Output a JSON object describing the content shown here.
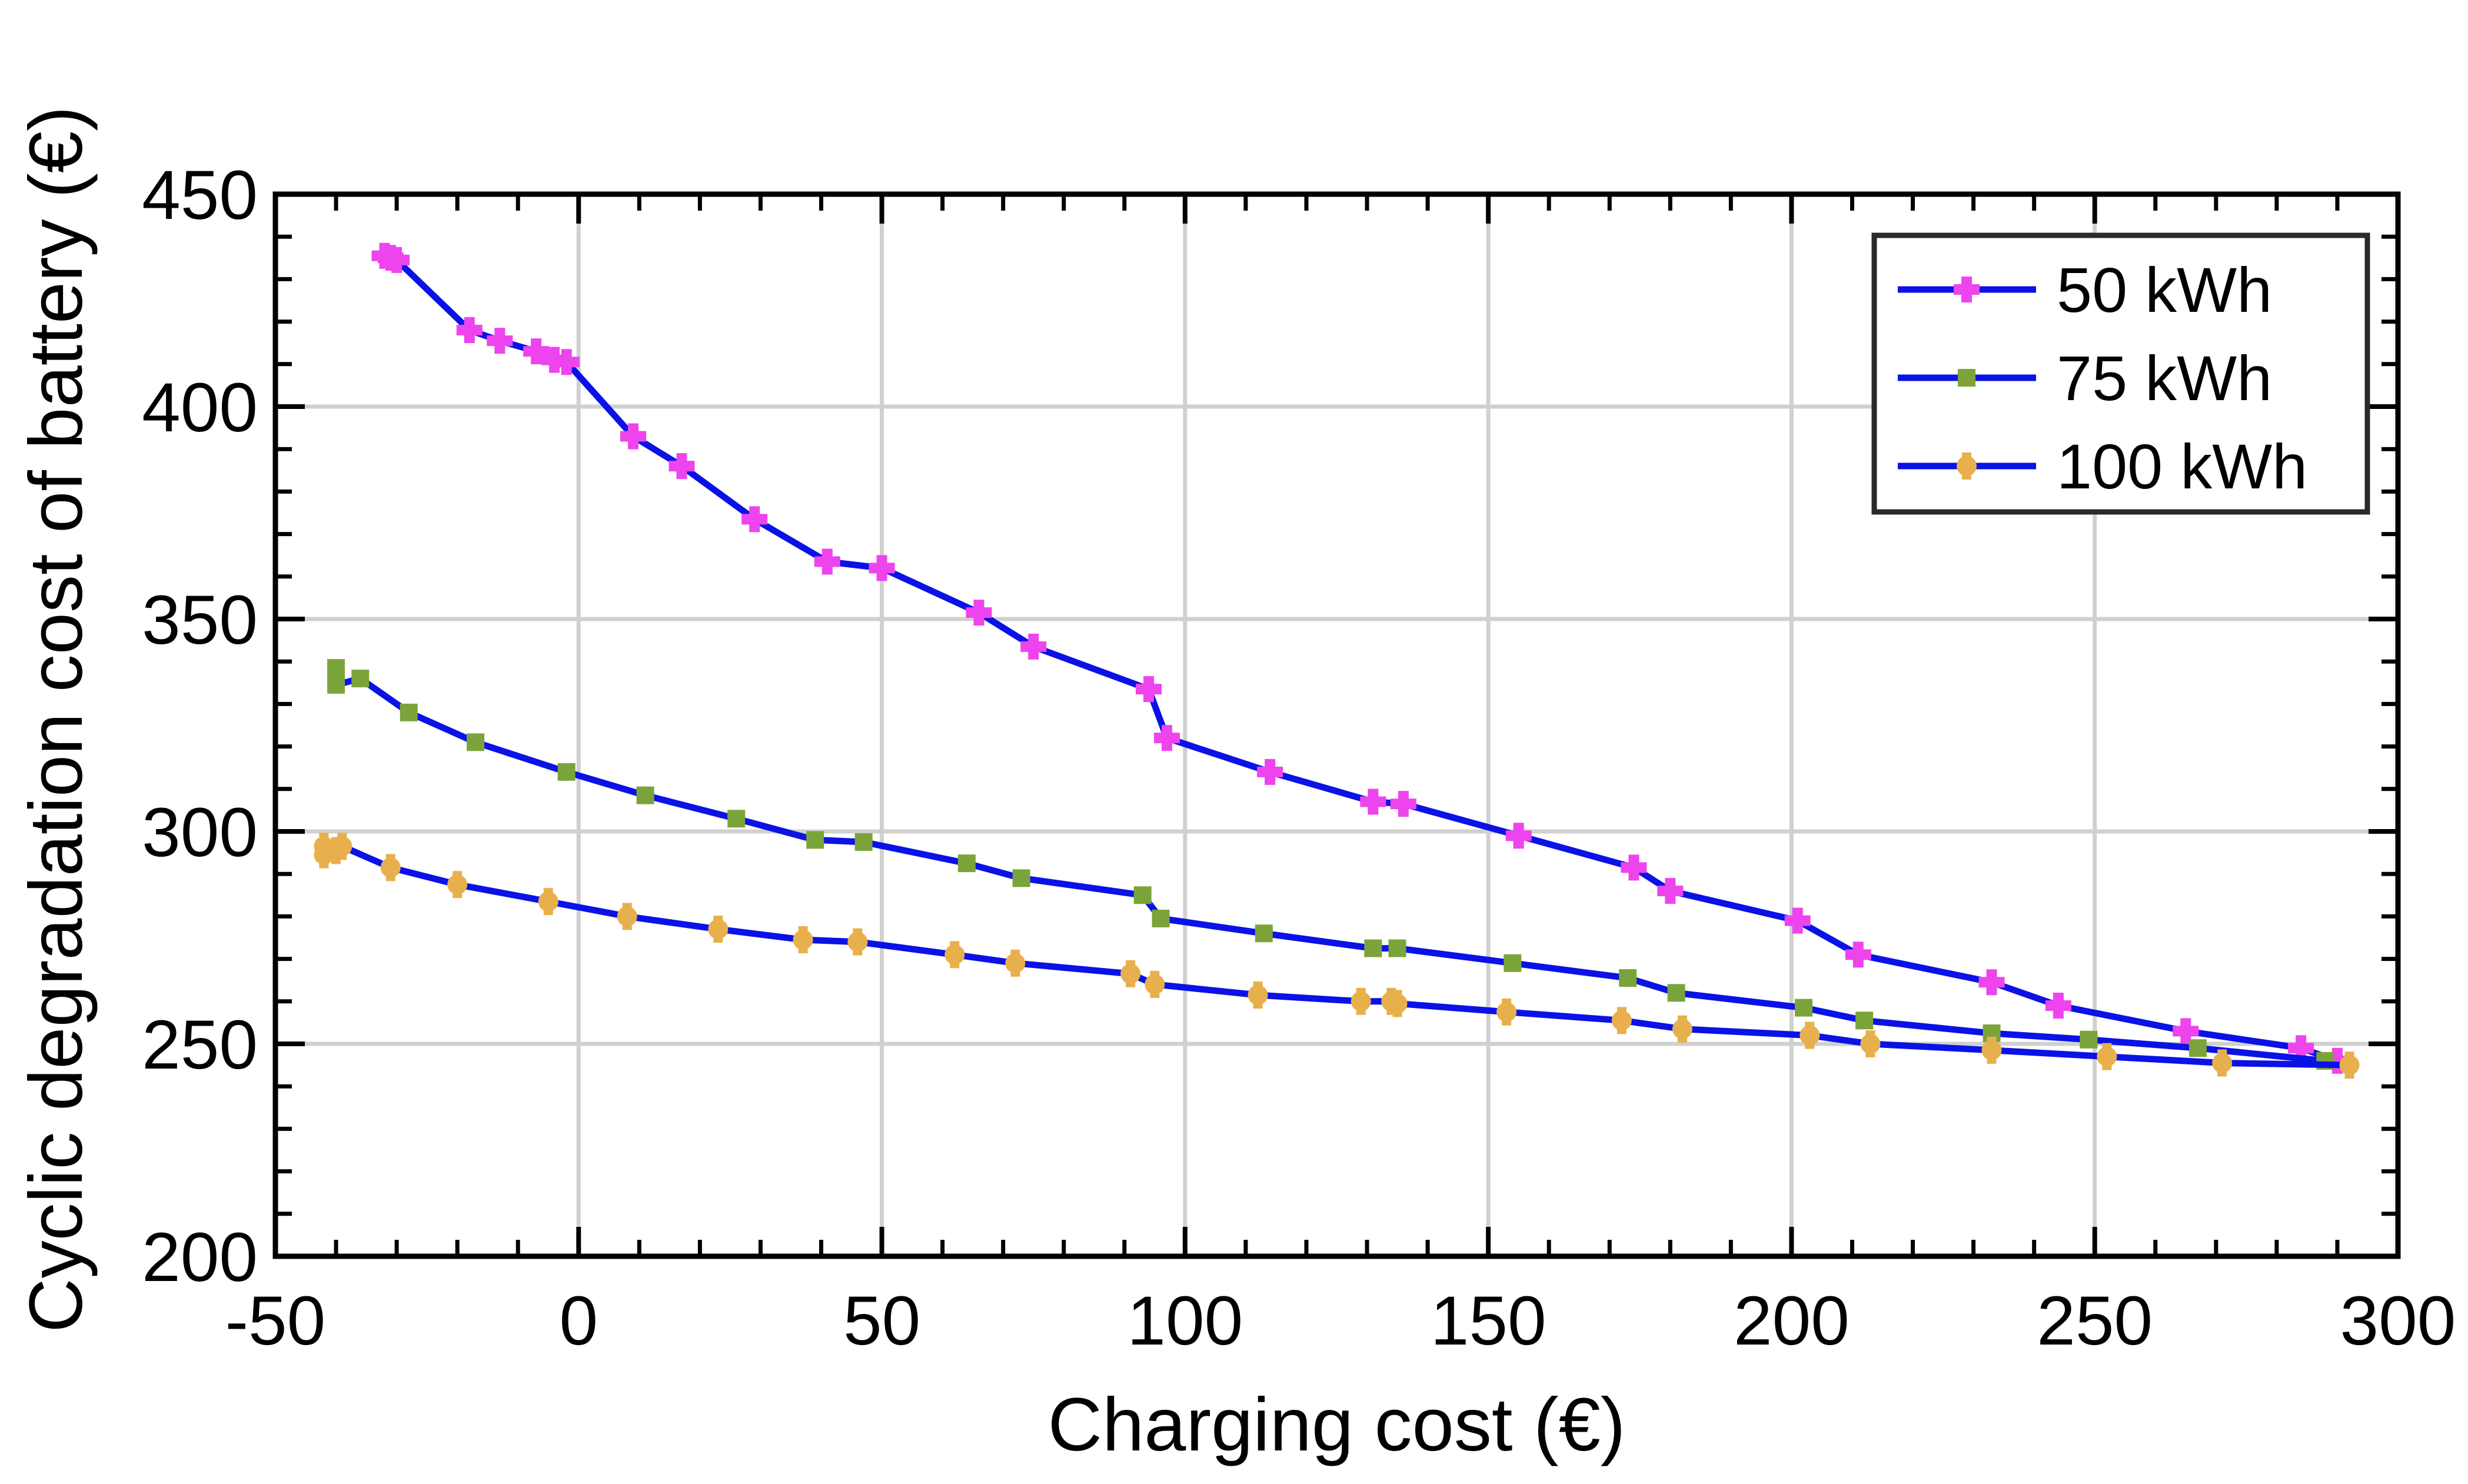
{
  "chart_data": {
    "type": "line",
    "title": "",
    "xlabel": "Charging cost (€)",
    "ylabel": "Cyclic degradation cost of battery (€)",
    "xlim": [
      -50,
      300
    ],
    "ylim": [
      200,
      450
    ],
    "xticks": [
      -50,
      0,
      50,
      100,
      150,
      200,
      250,
      300
    ],
    "yticks": [
      200,
      250,
      300,
      350,
      400,
      450
    ],
    "x_tick_labels": [
      "-50",
      "0",
      "50",
      "100",
      "150",
      "200",
      "250",
      "300"
    ],
    "y_tick_labels": [
      "200",
      "250",
      "300",
      "350",
      "400",
      "450"
    ],
    "grid": true,
    "legend_position": "top-right",
    "line_color": "#0a12e6",
    "series": [
      {
        "name": "50 kWh",
        "marker": "plus",
        "marker_color": "#ee44ee",
        "x": [
          -32,
          -31,
          -30,
          -18,
          -13,
          -7,
          -4,
          -2,
          9,
          17,
          29,
          41,
          50,
          66,
          75,
          94,
          97,
          114,
          131,
          136,
          155,
          174,
          180,
          201,
          211,
          233,
          244,
          265,
          284,
          290
        ],
        "y": [
          435.5,
          435,
          434.5,
          418,
          415.5,
          413,
          411,
          410.5,
          393,
          386,
          373.5,
          363.5,
          362,
          351.5,
          343.5,
          333.5,
          322,
          314,
          307,
          306.5,
          299,
          291.5,
          286,
          279,
          271,
          264.5,
          259,
          253,
          249,
          246
        ]
      },
      {
        "name": "75 kWh",
        "marker": "square",
        "marker_color": "#7aa43a",
        "x": [
          -40,
          -40,
          -36,
          -28,
          -17,
          -2,
          11,
          26,
          39,
          47,
          64,
          73,
          93,
          96,
          113,
          131,
          135,
          154,
          173,
          181,
          202,
          212,
          233,
          249,
          267,
          288
        ],
        "y": [
          338.5,
          334.5,
          336,
          328,
          321,
          314,
          308.5,
          303,
          298,
          297.5,
          292.5,
          289,
          285,
          279.5,
          276,
          272.5,
          272.5,
          269,
          265.5,
          262,
          258.5,
          255.5,
          252.5,
          251,
          249,
          246
        ]
      },
      {
        "name": "100 kWh",
        "marker": "circle",
        "marker_color": "#e8b04c",
        "x": [
          -42,
          -42,
          -40,
          -39,
          -31,
          -20,
          -5,
          8,
          23,
          37,
          46,
          62,
          72,
          91,
          95,
          112,
          129,
          134,
          135,
          153,
          172,
          182,
          203,
          213,
          233,
          252,
          271,
          292
        ],
        "y": [
          296.5,
          294.5,
          295.5,
          296.5,
          291.5,
          287.5,
          283.5,
          280,
          277,
          274.5,
          274,
          271,
          269,
          266.5,
          264,
          261.5,
          260,
          260,
          259.5,
          257.5,
          255.5,
          253.5,
          252,
          250,
          248.5,
          247,
          245.5,
          245
        ]
      }
    ]
  }
}
